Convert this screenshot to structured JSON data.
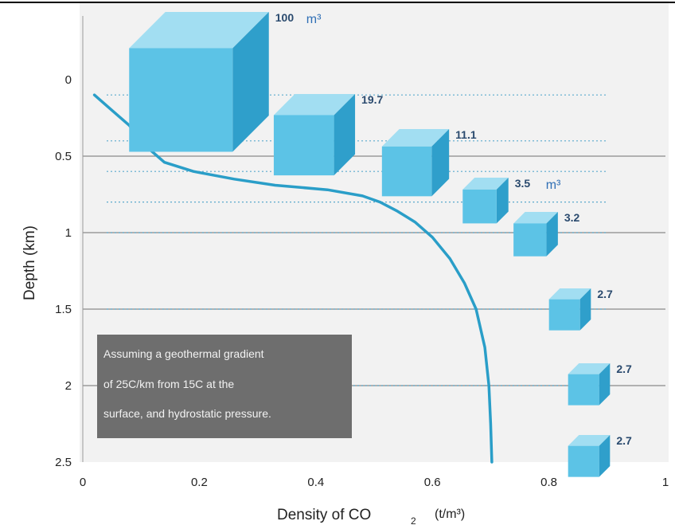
{
  "chart_data": {
    "type": "line",
    "xlabel": "Density of CO",
    "xlabel_subscript": "2",
    "xlabel_unit": "(t/m³)",
    "ylabel": "Depth (km)",
    "xlim": [
      0,
      1
    ],
    "ylim": [
      0,
      2.5
    ],
    "y_inverted": true,
    "x_ticks": [
      "0",
      "0.2",
      "0.4",
      "0.6",
      "0.8",
      "1"
    ],
    "x_tick_values": [
      0,
      0.2,
      0.4,
      0.6,
      0.8,
      1
    ],
    "y_ticks": [
      "0",
      "0.5",
      "1",
      "1.5",
      "2",
      "2.5"
    ],
    "y_tick_values": [
      0,
      0.5,
      1,
      1.5,
      2,
      2.5
    ],
    "grid": "horizontal",
    "series": [
      {
        "color": "#2a9ec8",
        "points": [
          [
            0.02,
            0.1
          ],
          [
            0.05,
            0.2
          ],
          [
            0.08,
            0.3
          ],
          [
            0.11,
            0.44
          ],
          [
            0.14,
            0.54
          ],
          [
            0.19,
            0.6
          ],
          [
            0.26,
            0.65
          ],
          [
            0.33,
            0.69
          ],
          [
            0.42,
            0.72
          ],
          [
            0.48,
            0.76
          ],
          [
            0.51,
            0.8
          ],
          [
            0.54,
            0.86
          ],
          [
            0.57,
            0.93
          ],
          [
            0.6,
            1.03
          ],
          [
            0.63,
            1.17
          ],
          [
            0.655,
            1.33
          ],
          [
            0.675,
            1.5
          ],
          [
            0.69,
            1.75
          ],
          [
            0.697,
            2.0
          ],
          [
            0.7,
            2.25
          ],
          [
            0.702,
            2.5
          ]
        ]
      }
    ],
    "volumes": [
      {
        "depth": 0.1,
        "label": "100",
        "unit": "m³"
      },
      {
        "depth": 0.4,
        "label": "19.7",
        "unit": ""
      },
      {
        "depth": 0.6,
        "label": "11.1",
        "unit": ""
      },
      {
        "depth": 0.8,
        "label": "3.5",
        "unit": "m³"
      },
      {
        "depth": 1.0,
        "label": "3.2",
        "unit": ""
      },
      {
        "depth": 1.5,
        "label": "2.7",
        "unit": ""
      },
      {
        "depth": 2.0,
        "label": "2.7",
        "unit": ""
      },
      {
        "depth": 2.5,
        "label": "2.7",
        "unit": ""
      }
    ],
    "annotation": {
      "lines": [
        "Assuming a geothermal gradient",
        "of 25C/km from 15C at the",
        "surface, and hydrostatic pressure."
      ]
    }
  },
  "colors": {
    "curve": "#2a9ec8",
    "cube_front": "#5cc3e6",
    "cube_top": "#a2def2",
    "cube_side": "#2f9fcb",
    "note_box": "#6e6e6e",
    "grid": "#8a8a8a"
  }
}
